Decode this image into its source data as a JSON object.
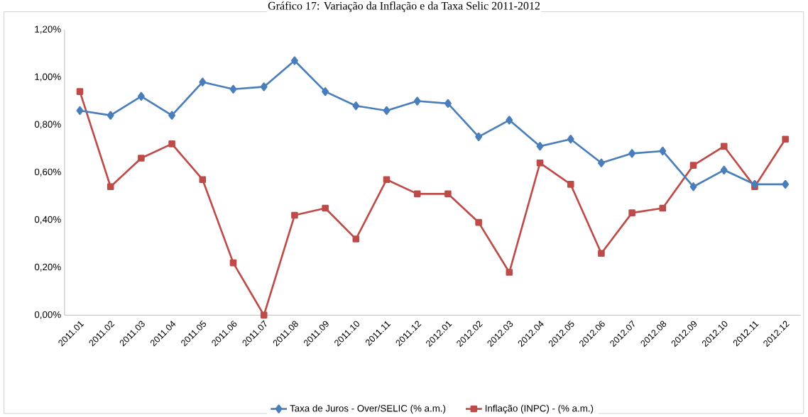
{
  "chart_data": {
    "type": "line",
    "title": "Gráfico 17: Variação da Inflação e da Taxa Selic 2011-2012",
    "categories": [
      "2011.01",
      "2011.02",
      "2011.03",
      "2011.04",
      "2011.05",
      "2011.06",
      "2011.07",
      "2011.08",
      "2011.09",
      "2011.10",
      "2011.11",
      "2011.12",
      "2012.01",
      "2012.02",
      "2012.03",
      "2012.04",
      "2012.05",
      "2012.06",
      "2012.07",
      "2012.08",
      "2012.09",
      "2012.10",
      "2012.11",
      "2012.12"
    ],
    "series": [
      {
        "name": "Taxa de Juros - Over/SELIC (% a.m.)",
        "color": "#4a7ebb",
        "marker": "diamond",
        "values": [
          0.86,
          0.84,
          0.92,
          0.84,
          0.98,
          0.95,
          0.96,
          1.07,
          0.94,
          0.88,
          0.86,
          0.9,
          0.89,
          0.75,
          0.82,
          0.71,
          0.74,
          0.64,
          0.68,
          0.69,
          0.54,
          0.61,
          0.55,
          0.55
        ]
      },
      {
        "name": "Inflação (INPC) - (% a.m.)",
        "color": "#be4b48",
        "marker": "square",
        "values": [
          0.94,
          0.54,
          0.66,
          0.72,
          0.57,
          0.22,
          0.0,
          0.42,
          0.45,
          0.32,
          0.57,
          0.51,
          0.51,
          0.39,
          0.18,
          0.64,
          0.55,
          0.26,
          0.43,
          0.45,
          0.63,
          0.71,
          0.54,
          0.74
        ]
      }
    ],
    "ylim": [
      0,
      1.2
    ],
    "yticks": [
      {
        "value": 0,
        "label": "0,00%"
      },
      {
        "value": 0.2,
        "label": "0,20%"
      },
      {
        "value": 0.4,
        "label": "0,40%"
      },
      {
        "value": 0.6,
        "label": "0,60%"
      },
      {
        "value": 0.8,
        "label": "0,80%"
      },
      {
        "value": 1.0,
        "label": "1,00%"
      },
      {
        "value": 1.2,
        "label": "1,20%"
      }
    ],
    "grid": false,
    "legend": "bottom",
    "line_style": "solid"
  }
}
